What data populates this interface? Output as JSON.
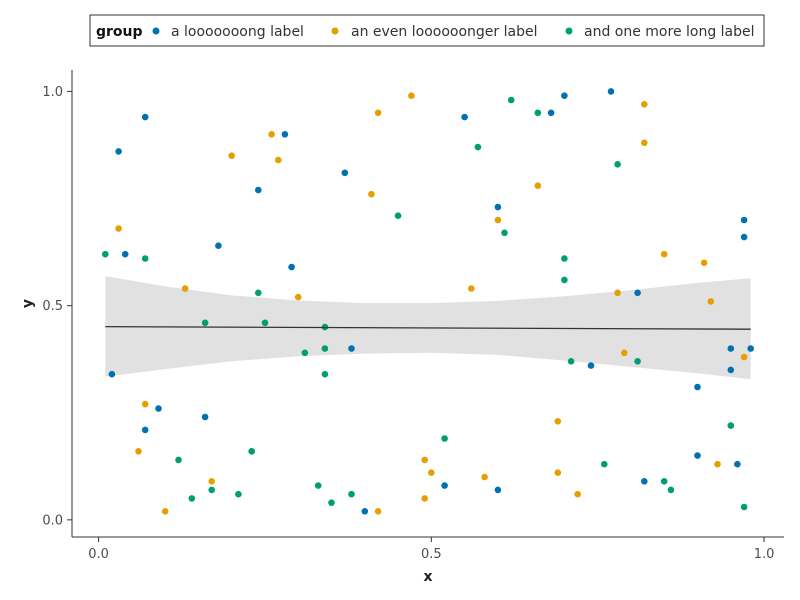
{
  "chart_data": {
    "type": "scatter",
    "xlabel": "x",
    "ylabel": "y",
    "xlim": [
      -0.04,
      1.03
    ],
    "ylim": [
      -0.04,
      1.05
    ],
    "x_ticks": [
      0.0,
      0.5,
      1.0
    ],
    "x_tick_labels": [
      "0.0",
      "0.5",
      "1.0"
    ],
    "y_ticks": [
      0.0,
      0.5,
      1.0
    ],
    "y_tick_labels": [
      "0.0",
      "0.5",
      "1.0"
    ],
    "grid": false,
    "legend": {
      "title": "group",
      "placement": "top"
    },
    "series": [
      {
        "name": "a looooooong label",
        "color": "#0072b2",
        "points": [
          [
            0.02,
            0.34
          ],
          [
            0.03,
            0.86
          ],
          [
            0.04,
            0.62
          ],
          [
            0.07,
            0.21
          ],
          [
            0.07,
            0.94
          ],
          [
            0.09,
            0.26
          ],
          [
            0.16,
            0.24
          ],
          [
            0.18,
            0.64
          ],
          [
            0.24,
            0.77
          ],
          [
            0.28,
            0.9
          ],
          [
            0.29,
            0.59
          ],
          [
            0.37,
            0.81
          ],
          [
            0.38,
            0.4
          ],
          [
            0.4,
            0.02
          ],
          [
            0.52,
            0.08
          ],
          [
            0.55,
            0.94
          ],
          [
            0.6,
            0.73
          ],
          [
            0.6,
            0.07
          ],
          [
            0.68,
            0.95
          ],
          [
            0.7,
            0.99
          ],
          [
            0.74,
            0.36
          ],
          [
            0.77,
            1.0
          ],
          [
            0.81,
            0.53
          ],
          [
            0.82,
            0.09
          ],
          [
            0.9,
            0.31
          ],
          [
            0.9,
            0.15
          ],
          [
            0.95,
            0.4
          ],
          [
            0.95,
            0.35
          ],
          [
            0.96,
            0.13
          ],
          [
            0.97,
            0.7
          ],
          [
            0.97,
            0.66
          ],
          [
            0.98,
            0.4
          ]
        ]
      },
      {
        "name": "an even loooooonger label",
        "color": "#e69f00",
        "points": [
          [
            0.03,
            0.68
          ],
          [
            0.06,
            0.16
          ],
          [
            0.07,
            0.27
          ],
          [
            0.1,
            0.02
          ],
          [
            0.13,
            0.54
          ],
          [
            0.17,
            0.09
          ],
          [
            0.2,
            0.85
          ],
          [
            0.23,
            0.16
          ],
          [
            0.26,
            0.9
          ],
          [
            0.27,
            0.84
          ],
          [
            0.3,
            0.52
          ],
          [
            0.41,
            0.76
          ],
          [
            0.42,
            0.95
          ],
          [
            0.42,
            0.02
          ],
          [
            0.47,
            0.99
          ],
          [
            0.49,
            0.14
          ],
          [
            0.49,
            0.05
          ],
          [
            0.5,
            0.11
          ],
          [
            0.56,
            0.54
          ],
          [
            0.58,
            0.1
          ],
          [
            0.6,
            0.7
          ],
          [
            0.66,
            0.78
          ],
          [
            0.69,
            0.23
          ],
          [
            0.69,
            0.11
          ],
          [
            0.72,
            0.06
          ],
          [
            0.78,
            0.53
          ],
          [
            0.79,
            0.39
          ],
          [
            0.82,
            0.97
          ],
          [
            0.82,
            0.88
          ],
          [
            0.85,
            0.62
          ],
          [
            0.91,
            0.6
          ],
          [
            0.92,
            0.51
          ],
          [
            0.93,
            0.13
          ],
          [
            0.95,
            0.22
          ],
          [
            0.97,
            0.38
          ]
        ]
      },
      {
        "name": "and one more long label",
        "color": "#009e73",
        "points": [
          [
            0.01,
            0.62
          ],
          [
            0.07,
            0.61
          ],
          [
            0.12,
            0.14
          ],
          [
            0.14,
            0.05
          ],
          [
            0.16,
            0.46
          ],
          [
            0.17,
            0.07
          ],
          [
            0.21,
            0.06
          ],
          [
            0.23,
            0.16
          ],
          [
            0.24,
            0.53
          ],
          [
            0.25,
            0.46
          ],
          [
            0.31,
            0.39
          ],
          [
            0.33,
            0.08
          ],
          [
            0.34,
            0.4
          ],
          [
            0.34,
            0.45
          ],
          [
            0.34,
            0.34
          ],
          [
            0.35,
            0.04
          ],
          [
            0.38,
            0.06
          ],
          [
            0.45,
            0.71
          ],
          [
            0.52,
            0.19
          ],
          [
            0.57,
            0.87
          ],
          [
            0.61,
            0.67
          ],
          [
            0.62,
            0.98
          ],
          [
            0.66,
            0.95
          ],
          [
            0.7,
            0.56
          ],
          [
            0.7,
            0.61
          ],
          [
            0.71,
            0.37
          ],
          [
            0.76,
            0.13
          ],
          [
            0.78,
            0.83
          ],
          [
            0.81,
            0.37
          ],
          [
            0.85,
            0.09
          ],
          [
            0.86,
            0.07
          ],
          [
            0.95,
            0.22
          ],
          [
            0.97,
            0.03
          ]
        ]
      }
    ],
    "trend": {
      "x": [
        0.01,
        0.98
      ],
      "fit": [
        0.451,
        0.445
      ],
      "ci_x": [
        0.01,
        0.1,
        0.2,
        0.3,
        0.4,
        0.5,
        0.6,
        0.7,
        0.8,
        0.9,
        0.98
      ],
      "ci_upper": [
        0.569,
        0.545,
        0.524,
        0.512,
        0.506,
        0.506,
        0.511,
        0.522,
        0.536,
        0.553,
        0.564
      ],
      "ci_lower": [
        0.334,
        0.352,
        0.37,
        0.382,
        0.388,
        0.39,
        0.385,
        0.372,
        0.357,
        0.342,
        0.328
      ],
      "line_color": "#333333",
      "band_color": "#dedede"
    }
  }
}
